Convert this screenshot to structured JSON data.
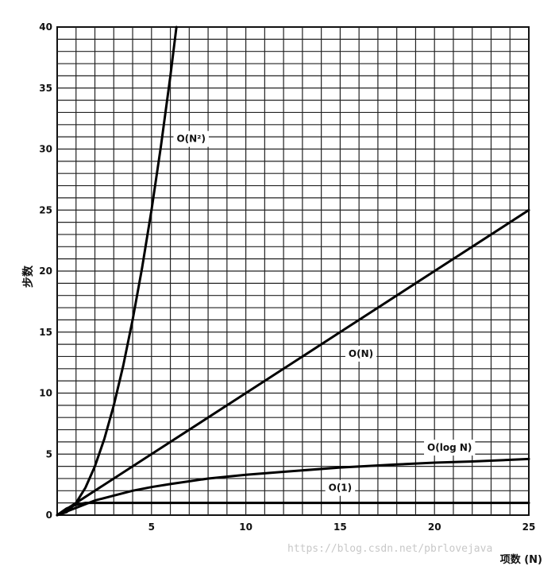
{
  "chart_data": {
    "type": "line",
    "title": "",
    "xlabel": "项数 (N)",
    "ylabel": "步数",
    "xlim": [
      0,
      25
    ],
    "ylim": [
      0,
      40
    ],
    "x_ticks": [
      5,
      10,
      15,
      20,
      25
    ],
    "y_ticks": [
      0,
      5,
      10,
      15,
      20,
      25,
      30,
      35,
      40
    ],
    "grid": true,
    "series": [
      {
        "name": "O(N²)",
        "x": [
          0,
          0.5,
          1,
          1.5,
          2,
          2.5,
          3,
          3.5,
          4,
          4.5,
          5,
          5.5,
          6,
          6.32
        ],
        "y": [
          0,
          0.25,
          1,
          2.25,
          4,
          6.25,
          9,
          12.25,
          16,
          20.25,
          25,
          30.25,
          36,
          40
        ]
      },
      {
        "name": "O(N)",
        "x": [
          0,
          5,
          10,
          15,
          20,
          25
        ],
        "y": [
          0,
          5,
          10,
          15,
          20,
          25
        ]
      },
      {
        "name": "O(log N)",
        "x": [
          0,
          1,
          2,
          3,
          4,
          5,
          6,
          8,
          10,
          12,
          15,
          18,
          20,
          22,
          25
        ],
        "y": [
          0,
          0.6,
          1.2,
          1.6,
          2.0,
          2.3,
          2.55,
          3.0,
          3.3,
          3.55,
          3.9,
          4.15,
          4.3,
          4.4,
          4.6
        ]
      },
      {
        "name": "O(1)",
        "x": [
          0,
          0.5,
          1,
          1.5,
          2,
          5,
          10,
          15,
          20,
          25
        ],
        "y": [
          0,
          0.55,
          0.85,
          1.0,
          1.0,
          1.0,
          1.0,
          1.0,
          1.0,
          1.0
        ]
      }
    ],
    "labels": [
      {
        "text": "O(N²)",
        "x": 7.1,
        "y": 30.8
      },
      {
        "text": "O(N)",
        "x": 16.1,
        "y": 13.2
      },
      {
        "text": "O(log N)",
        "x": 20.8,
        "y": 5.5
      },
      {
        "text": "O(1)",
        "x": 15.0,
        "y": 2.2
      }
    ]
  },
  "watermark": "https://blog.csdn.net/pbrlovejava"
}
